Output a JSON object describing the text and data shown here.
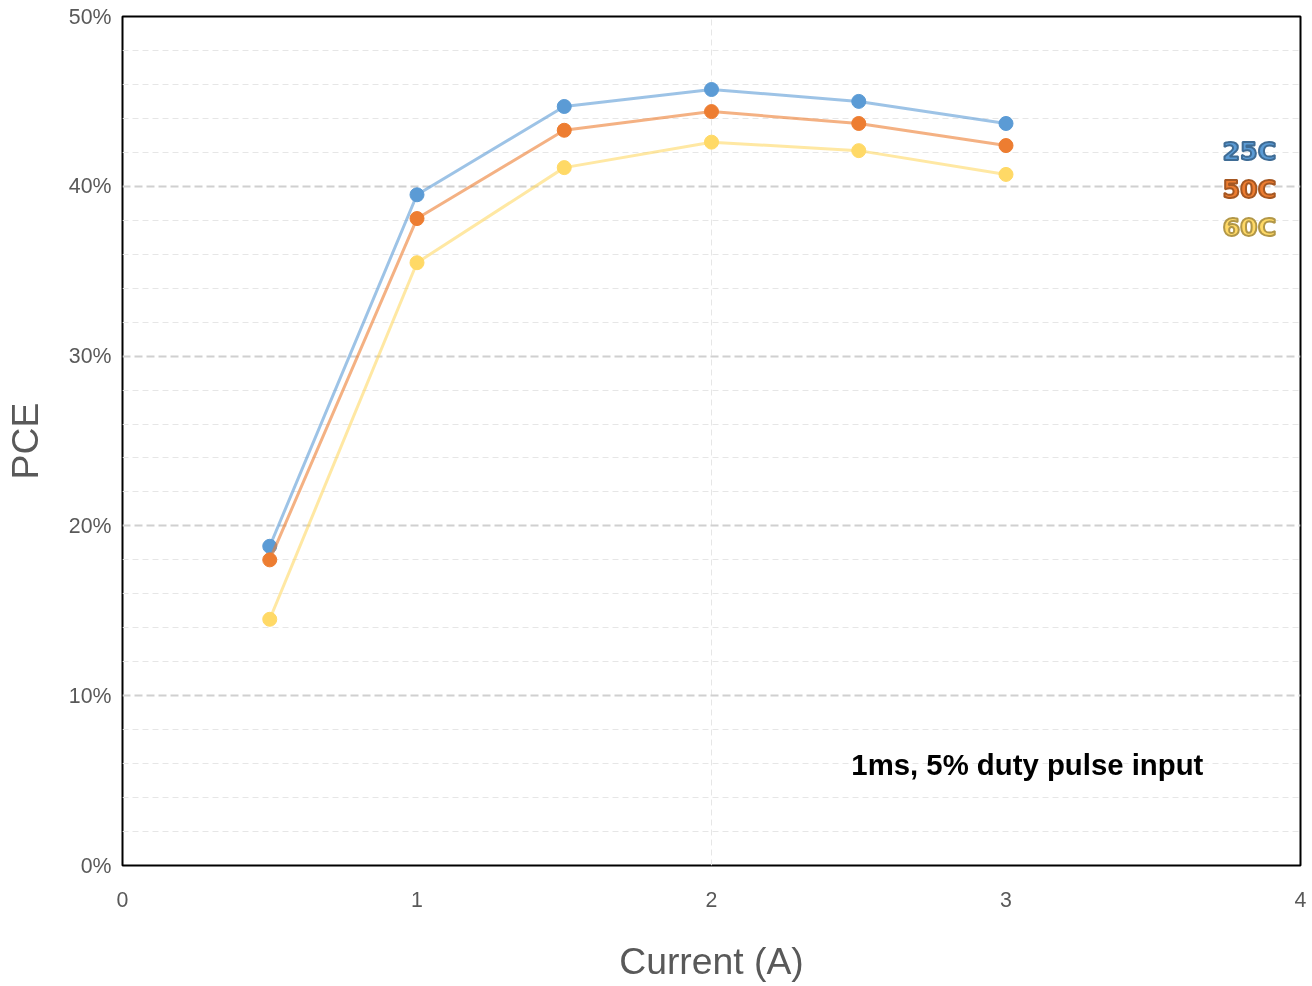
{
  "chart_data": {
    "type": "line",
    "xlabel": "Current (A)",
    "ylabel": "PCE",
    "annotations": [
      "1ms, 5% duty pulse input"
    ],
    "xlim": [
      0,
      4
    ],
    "xticks": [
      0,
      1,
      2,
      3,
      4
    ],
    "ylim": [
      0,
      50
    ],
    "yticks": [
      {
        "value": 0,
        "label": "0%"
      },
      {
        "value": 10,
        "label": "10%"
      },
      {
        "value": 20,
        "label": "20%"
      },
      {
        "value": 30,
        "label": "30%"
      },
      {
        "value": 40,
        "label": "40%"
      },
      {
        "value": 50,
        "label": "50%"
      }
    ],
    "grid": true,
    "legend": "right",
    "marker": "circle",
    "line_style": "solid",
    "series": [
      {
        "name": "25C",
        "color": "#5b9bd5",
        "x": [
          0.5,
          1,
          1.5,
          2,
          2.5,
          3
        ],
        "values": [
          18.8,
          39.5,
          44.7,
          45.7,
          45.0,
          43.7
        ]
      },
      {
        "name": "50C",
        "color": "#ed7d31",
        "x": [
          0.5,
          1,
          1.5,
          2,
          2.5,
          3
        ],
        "values": [
          18.0,
          38.1,
          43.3,
          44.4,
          43.7,
          42.4
        ]
      },
      {
        "name": "60C",
        "color": "#ffd966",
        "x": [
          0.5,
          1,
          1.5,
          2,
          2.5,
          3
        ],
        "values": [
          14.5,
          35.5,
          41.1,
          42.6,
          42.1,
          40.7
        ]
      }
    ]
  }
}
